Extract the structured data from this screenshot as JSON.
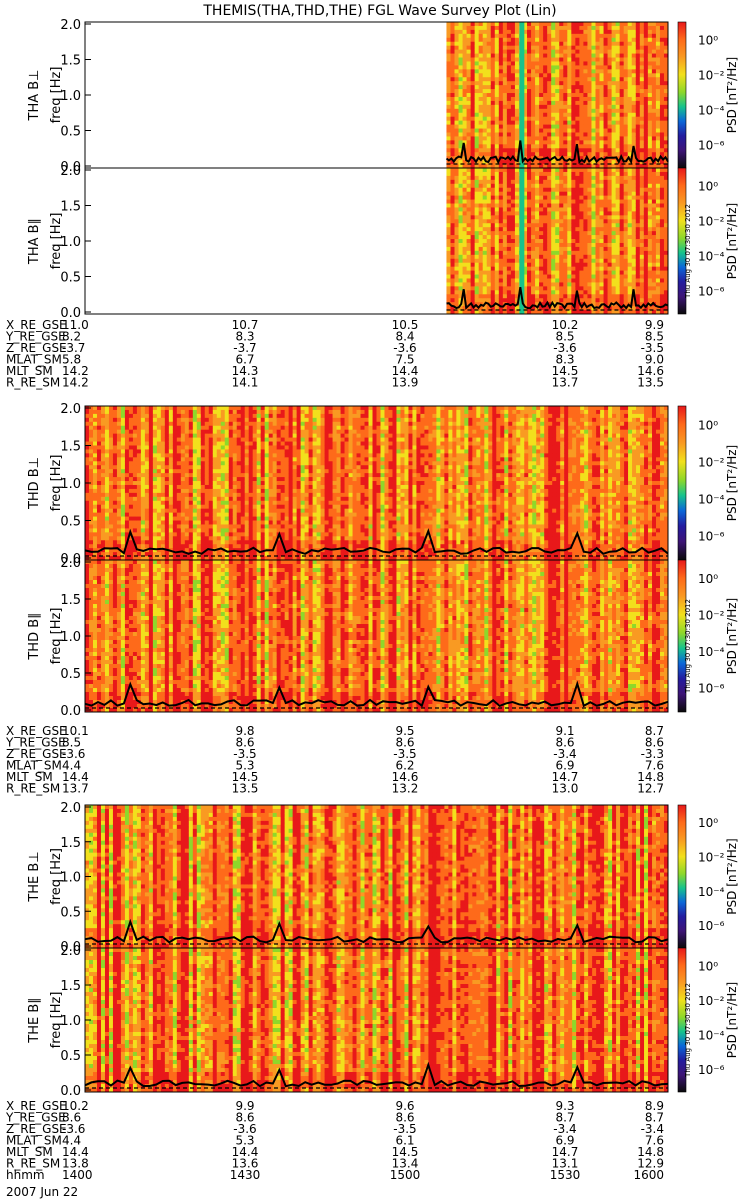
{
  "title": "THEMIS(THA,THD,THE) FGL Wave Survey Plot (Lin)",
  "stamp": "Thu Aug 30 07:30:30 2012",
  "colorbar": {
    "label": "PSD [nT²/Hz]",
    "ticks": [
      "10⁰",
      "10⁻²",
      "10⁻⁴",
      "10⁻⁶"
    ],
    "colors": [
      "#e8181a",
      "#fe6a1a",
      "#f99a22",
      "#f2e01c",
      "#8ed82a",
      "#17c38c",
      "#0b67d8",
      "#231c9f",
      "#3d1477",
      "#0a0a0a"
    ]
  },
  "freq_ticks": [
    "2.0",
    "1.5",
    "1.0",
    "0.5",
    "0.0"
  ],
  "chart_data": [
    {
      "type": "heatmap",
      "probe": "THA",
      "panel": "top",
      "ylabel": "THA B⊥",
      "yunit": "freq [Hz]",
      "ylim": [
        0,
        2.0
      ],
      "data_start_fraction": 0.62
    },
    {
      "type": "heatmap",
      "probe": "THA",
      "panel": "bottom",
      "ylabel": "THA B∥",
      "yunit": "freq [Hz]",
      "ylim": [
        0,
        2.0
      ],
      "data_start_fraction": 0.62
    },
    {
      "type": "heatmap",
      "probe": "THD",
      "panel": "top",
      "ylabel": "THD B⊥",
      "yunit": "freq [Hz]",
      "ylim": [
        0,
        2.0
      ]
    },
    {
      "type": "heatmap",
      "probe": "THD",
      "panel": "bottom",
      "ylabel": "THD B∥",
      "yunit": "freq [Hz]",
      "ylim": [
        0,
        2.0
      ]
    },
    {
      "type": "heatmap",
      "probe": "THE",
      "panel": "top",
      "ylabel": "THE B⊥",
      "yunit": "freq [Hz]",
      "ylim": [
        0,
        2.0
      ]
    },
    {
      "type": "heatmap",
      "probe": "THE",
      "panel": "bottom",
      "ylabel": "THE B∥",
      "yunit": "freq [Hz]",
      "ylim": [
        0,
        2.0
      ]
    }
  ],
  "ephemeris": [
    {
      "probe": "THA",
      "rows": [
        {
          "label": "X_RE_GSE",
          "values": [
            "11.0",
            "10.7",
            "10.5",
            "10.2",
            "9.9"
          ]
        },
        {
          "label": "Y_RE_GSE",
          "values": [
            "8.2",
            "8.3",
            "8.4",
            "8.5",
            "8.5"
          ]
        },
        {
          "label": "Z_RE_GSE",
          "values": [
            "-3.7",
            "-3.7",
            "-3.6",
            "-3.6",
            "-3.5"
          ]
        },
        {
          "label": "MLAT_SM",
          "values": [
            "5.8",
            "6.7",
            "7.5",
            "8.3",
            "9.0"
          ]
        },
        {
          "label": "MLT_SM",
          "values": [
            "14.2",
            "14.3",
            "14.4",
            "14.5",
            "14.6"
          ]
        },
        {
          "label": "R_RE_SM",
          "values": [
            "14.2",
            "14.1",
            "13.9",
            "13.7",
            "13.5"
          ]
        }
      ]
    },
    {
      "probe": "THD",
      "rows": [
        {
          "label": "X_RE_GSE",
          "values": [
            "10.1",
            "9.8",
            "9.5",
            "9.1",
            "8.7"
          ]
        },
        {
          "label": "Y_RE_GSE",
          "values": [
            "8.5",
            "8.6",
            "8.6",
            "8.6",
            "8.6"
          ]
        },
        {
          "label": "Z_RE_GSE",
          "values": [
            "-3.6",
            "-3.5",
            "-3.5",
            "-3.4",
            "-3.3"
          ]
        },
        {
          "label": "MLAT_SM",
          "values": [
            "4.4",
            "5.3",
            "6.2",
            "6.9",
            "7.6"
          ]
        },
        {
          "label": "MLT_SM",
          "values": [
            "14.4",
            "14.5",
            "14.6",
            "14.7",
            "14.8"
          ]
        },
        {
          "label": "R_RE_SM",
          "values": [
            "13.7",
            "13.5",
            "13.2",
            "13.0",
            "12.7"
          ]
        }
      ]
    },
    {
      "probe": "THE",
      "rows": [
        {
          "label": "X_RE_GSE",
          "values": [
            "10.2",
            "9.9",
            "9.6",
            "9.3",
            "8.9"
          ]
        },
        {
          "label": "Y_RE_GSE",
          "values": [
            "8.6",
            "8.6",
            "8.6",
            "8.7",
            "8.7"
          ]
        },
        {
          "label": "Z_RE_GSE",
          "values": [
            "-3.6",
            "-3.6",
            "-3.5",
            "-3.4",
            "-3.4"
          ]
        },
        {
          "label": "MLAT_SM",
          "values": [
            "4.4",
            "5.3",
            "6.1",
            "6.9",
            "7.6"
          ]
        },
        {
          "label": "MLT_SM",
          "values": [
            "14.4",
            "14.4",
            "14.5",
            "14.7",
            "14.8"
          ]
        },
        {
          "label": "R_RE_SM",
          "values": [
            "13.8",
            "13.6",
            "13.4",
            "13.1",
            "12.9"
          ]
        },
        {
          "label": "hhmm",
          "values": [
            "1400",
            "1430",
            "1500",
            "1530",
            "1600"
          ]
        }
      ]
    }
  ],
  "date_label": "2007 Jun 22"
}
